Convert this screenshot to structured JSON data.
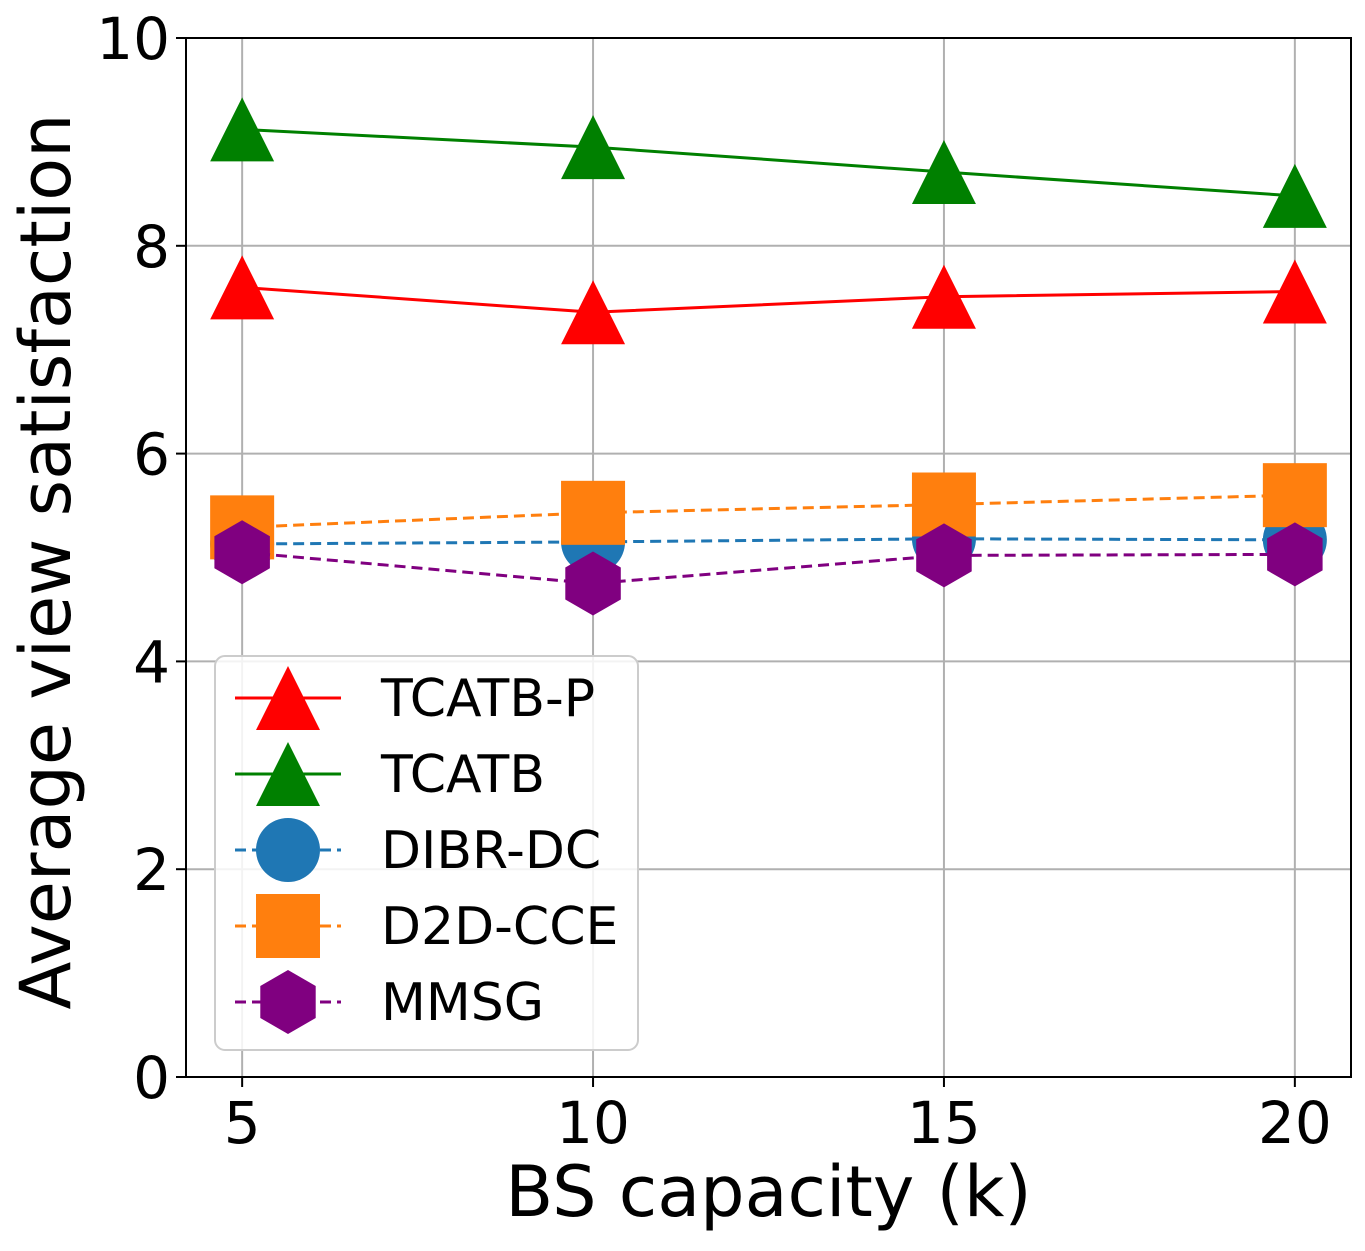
{
  "chart_data": {
    "type": "line",
    "title": "",
    "xlabel": "BS capacity (k)",
    "ylabel": "Average view satisfaction",
    "x": [
      5,
      10,
      15,
      20
    ],
    "xticks": [
      "5",
      "10",
      "15",
      "20"
    ],
    "yticks": [
      "0",
      "2",
      "4",
      "6",
      "8",
      "10"
    ],
    "xlim": [
      4.2,
      20.8
    ],
    "ylim": [
      0,
      10
    ],
    "grid": true,
    "legend_position": "lower-left",
    "series": [
      {
        "name": "TCATB-P",
        "values": [
          7.6,
          7.36,
          7.51,
          7.56
        ],
        "color": "#ff0000",
        "marker": "triangle",
        "line": "solid"
      },
      {
        "name": "TCATB",
        "values": [
          9.12,
          8.95,
          8.71,
          8.48
        ],
        "color": "#008000",
        "marker": "triangle",
        "line": "solid"
      },
      {
        "name": "DIBR-DC",
        "values": [
          5.13,
          5.15,
          5.18,
          5.17
        ],
        "color": "#1f77b4",
        "marker": "circle",
        "line": "dashed"
      },
      {
        "name": "D2D-CCE",
        "values": [
          5.29,
          5.43,
          5.51,
          5.6
        ],
        "color": "#ff7f0e",
        "marker": "square",
        "line": "dashed"
      },
      {
        "name": "MMSG",
        "values": [
          5.05,
          4.75,
          5.02,
          5.03
        ],
        "color": "#800080",
        "marker": "hexagon",
        "line": "dashed"
      }
    ]
  }
}
